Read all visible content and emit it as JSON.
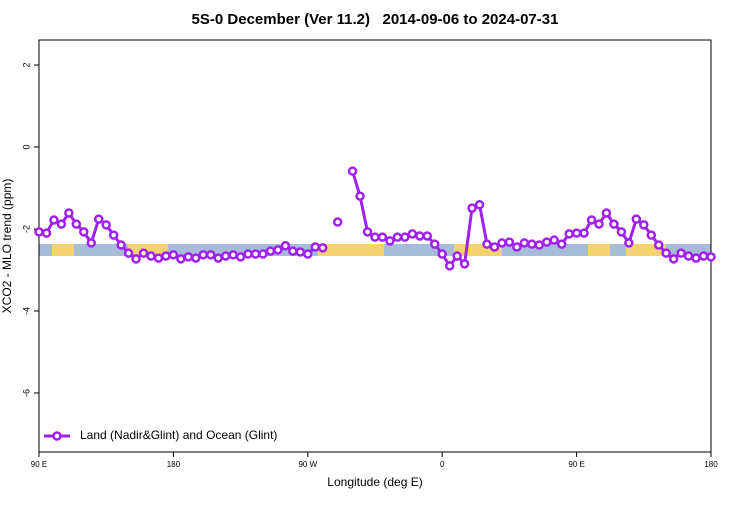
{
  "chart_data": {
    "type": "line",
    "title": "5S-0 December (Ver 11.2)   2014-09-06 to 2024-07-31",
    "x_label": "Longitude (deg E)",
    "y_label": "XCO2 - MLO trend (ppm)",
    "xlim": [
      90,
      540
    ],
    "xticks": [
      {
        "value": 90,
        "label": "90 E"
      },
      180,
      {
        "value": 270,
        "label": "90 W"
      },
      {
        "value": 360,
        "label": "0"
      },
      {
        "value": 450,
        "label": "90 E"
      },
      {
        "value": 540,
        "label": "180"
      }
    ],
    "ylim": [
      -7.44,
      2.61
    ],
    "yticks": [
      -6,
      -4,
      -2,
      0,
      2
    ],
    "grid": false,
    "legend": "bottomleft",
    "x": [
      90,
      95,
      100,
      105,
      110,
      115,
      120,
      125,
      130,
      135,
      140,
      145,
      150,
      155,
      160,
      165,
      170,
      175,
      180,
      185,
      190,
      195,
      200,
      205,
      210,
      215,
      220,
      225,
      230,
      235,
      240,
      245,
      250,
      255,
      260,
      265,
      270,
      275,
      280,
      285,
      290,
      295,
      300,
      305,
      310,
      315,
      320,
      325,
      330,
      335,
      340,
      345,
      350,
      355,
      360,
      365,
      370,
      375,
      380,
      385,
      390,
      395,
      400,
      405,
      410,
      415,
      420,
      425,
      430,
      435,
      440,
      445,
      450,
      455,
      460,
      465,
      470,
      475,
      480,
      485,
      490,
      495,
      500,
      505,
      510,
      515,
      520,
      525,
      530,
      535,
      540
    ],
    "series": [
      {
        "name": "Land (Nadir&Glint) and Ocean (Glint)",
        "color": "#a020f0",
        "values": [
          -2.07,
          -2.1,
          -1.78,
          -1.88,
          -1.61,
          -1.88,
          -2.07,
          -2.34,
          -1.76,
          -1.9,
          -2.15,
          -2.39,
          -2.59,
          -2.73,
          -2.59,
          -2.66,
          -2.71,
          -2.66,
          -2.63,
          -2.73,
          -2.68,
          -2.71,
          -2.63,
          -2.63,
          -2.71,
          -2.66,
          -2.63,
          -2.68,
          -2.61,
          -2.61,
          -2.61,
          -2.54,
          -2.51,
          -2.41,
          -2.54,
          -2.56,
          -2.61,
          -2.44,
          -2.46,
          null,
          -1.83,
          null,
          -0.59,
          -1.2,
          -2.07,
          -2.2,
          -2.2,
          -2.29,
          -2.2,
          -2.2,
          -2.12,
          -2.17,
          -2.17,
          -2.37,
          -2.61,
          -2.9,
          -2.66,
          -2.85,
          -1.49,
          -1.41,
          -2.37,
          -2.44,
          -2.34,
          -2.32,
          -2.44,
          -2.34,
          -2.37,
          -2.39,
          -2.32,
          -2.27,
          -2.37,
          -2.12,
          -2.1,
          -2.1,
          -1.78,
          -1.88,
          -1.61,
          -1.88,
          -2.07,
          -2.34,
          -1.76,
          -1.9,
          -2.15,
          -2.39,
          -2.59,
          -2.73,
          -2.59,
          -2.66,
          -2.71,
          -2.66,
          -2.68
        ]
      }
    ]
  }
}
